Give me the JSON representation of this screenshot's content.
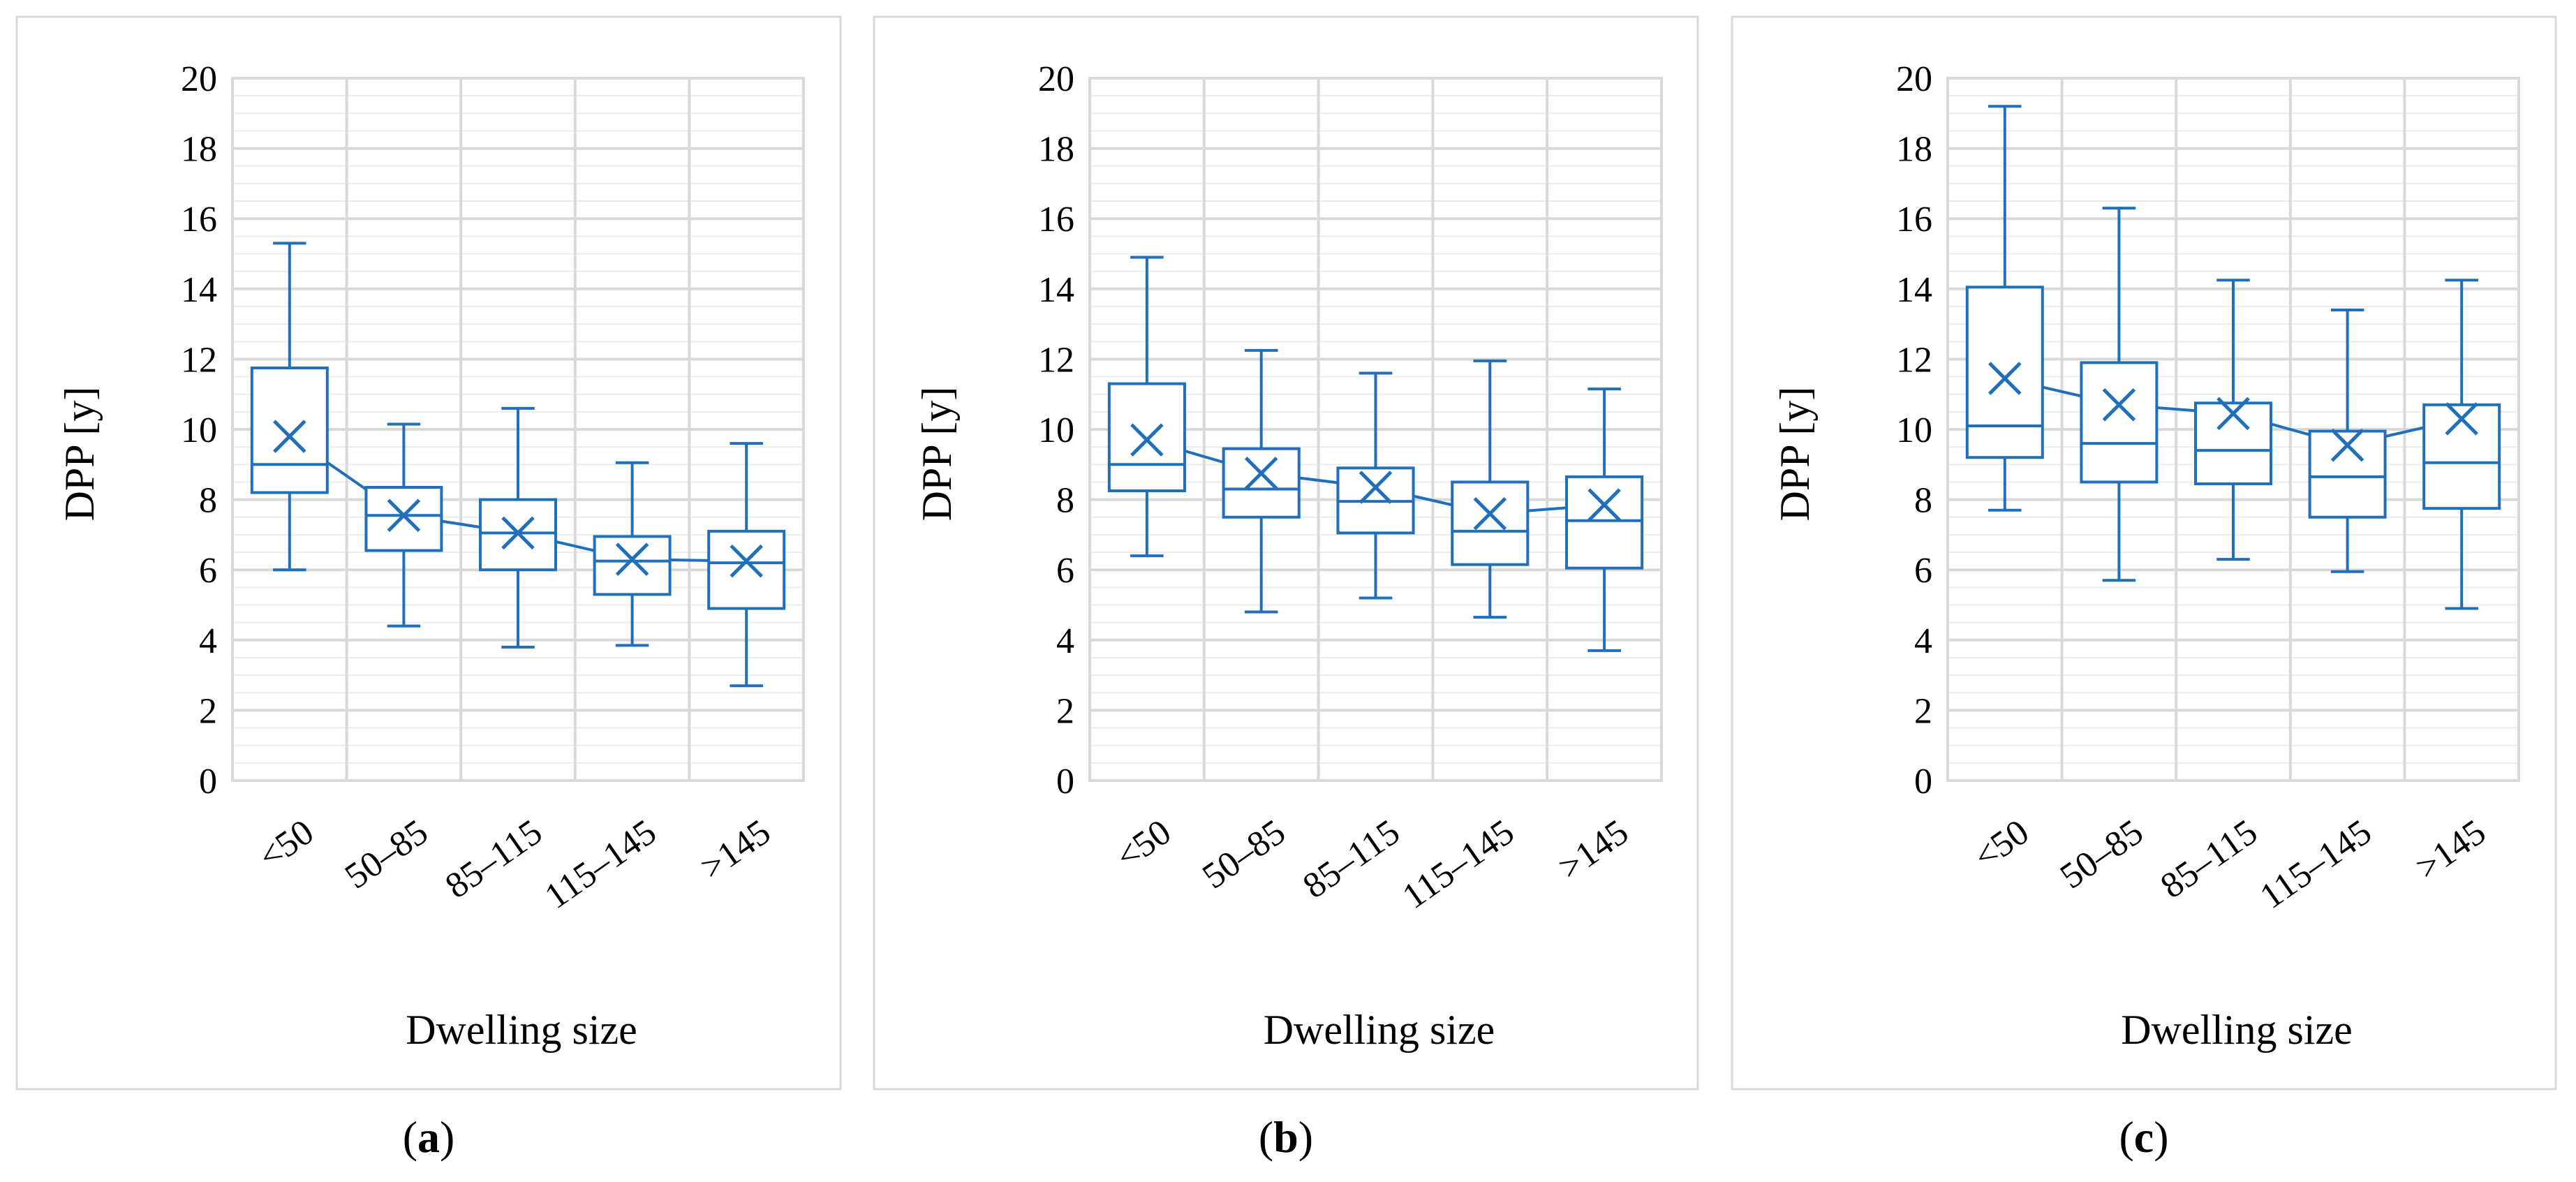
{
  "chart_data": [
    {
      "type": "box",
      "panel": "a",
      "caption": "(a)",
      "caption_letter": "a",
      "xlabel": "Dwelling size",
      "ylabel": "DPP [y]",
      "ylim": [
        0,
        20
      ],
      "y_ticks": [
        "0",
        "2",
        "4",
        "6",
        "8",
        "10",
        "12",
        "14",
        "16",
        "18",
        "20"
      ],
      "categories": [
        "<50",
        "50–85",
        "85–115",
        "115–145",
        ">145"
      ],
      "boxes": [
        {
          "min": 6.0,
          "q1": 8.2,
          "median": 9.0,
          "q3": 11.75,
          "max": 15.3,
          "mean": 9.8
        },
        {
          "min": 4.4,
          "q1": 6.55,
          "median": 7.55,
          "q3": 8.35,
          "max": 10.15,
          "mean": 7.55
        },
        {
          "min": 3.8,
          "q1": 6.0,
          "median": 7.05,
          "q3": 8.0,
          "max": 10.6,
          "mean": 7.05
        },
        {
          "min": 3.85,
          "q1": 5.3,
          "median": 6.25,
          "q3": 6.95,
          "max": 9.05,
          "mean": 6.3
        },
        {
          "min": 2.7,
          "q1": 4.9,
          "median": 6.2,
          "q3": 7.1,
          "max": 9.6,
          "mean": 6.25
        }
      ]
    },
    {
      "type": "box",
      "panel": "b",
      "caption": "(b)",
      "caption_letter": "b",
      "xlabel": "Dwelling size",
      "ylabel": "DPP [y]",
      "ylim": [
        0,
        20
      ],
      "y_ticks": [
        "0",
        "2",
        "4",
        "6",
        "8",
        "10",
        "12",
        "14",
        "16",
        "18",
        "20"
      ],
      "categories": [
        "<50",
        "50–85",
        "85–115",
        "115–145",
        ">145"
      ],
      "boxes": [
        {
          "min": 6.4,
          "q1": 8.25,
          "median": 9.0,
          "q3": 11.3,
          "max": 14.9,
          "mean": 9.7
        },
        {
          "min": 4.8,
          "q1": 7.5,
          "median": 8.3,
          "q3": 9.45,
          "max": 12.25,
          "mean": 8.75
        },
        {
          "min": 5.2,
          "q1": 7.05,
          "median": 7.95,
          "q3": 8.9,
          "max": 11.6,
          "mean": 8.35
        },
        {
          "min": 4.65,
          "q1": 6.15,
          "median": 7.1,
          "q3": 8.5,
          "max": 11.95,
          "mean": 7.6
        },
        {
          "min": 3.7,
          "q1": 6.05,
          "median": 7.4,
          "q3": 8.65,
          "max": 11.15,
          "mean": 7.85
        }
      ]
    },
    {
      "type": "box",
      "panel": "c",
      "caption": "(c)",
      "caption_letter": "c",
      "xlabel": "Dwelling size",
      "ylabel": "DPP [y]",
      "ylim": [
        0,
        20
      ],
      "y_ticks": [
        "0",
        "2",
        "4",
        "6",
        "8",
        "10",
        "12",
        "14",
        "16",
        "18",
        "20"
      ],
      "categories": [
        "<50",
        "50–85",
        "85–115",
        "115–145",
        ">145"
      ],
      "boxes": [
        {
          "min": 7.7,
          "q1": 9.2,
          "median": 10.1,
          "q3": 14.05,
          "max": 19.2,
          "mean": 11.45
        },
        {
          "min": 5.7,
          "q1": 8.5,
          "median": 9.6,
          "q3": 11.9,
          "max": 16.3,
          "mean": 10.7
        },
        {
          "min": 6.3,
          "q1": 8.45,
          "median": 9.4,
          "q3": 10.75,
          "max": 14.25,
          "mean": 10.45
        },
        {
          "min": 5.95,
          "q1": 7.5,
          "median": 8.65,
          "q3": 9.95,
          "max": 13.4,
          "mean": 9.55
        },
        {
          "min": 4.9,
          "q1": 7.75,
          "median": 9.05,
          "q3": 10.7,
          "max": 14.25,
          "mean": 10.3
        }
      ]
    }
  ]
}
